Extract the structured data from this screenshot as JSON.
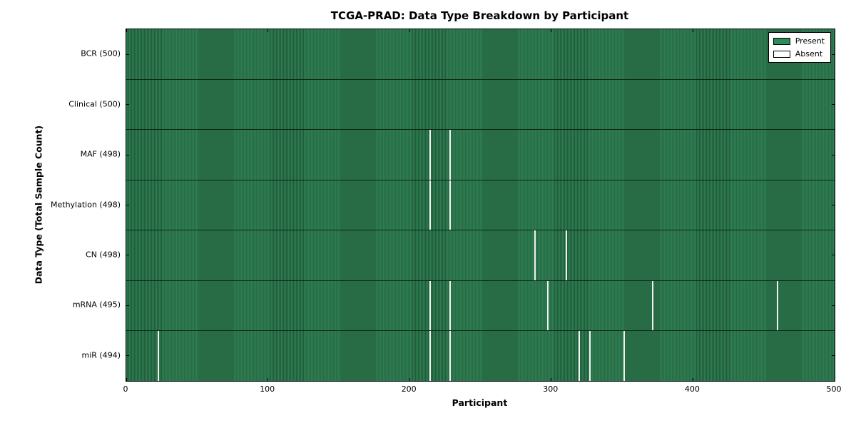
{
  "chart_data": {
    "type": "heatmap",
    "title": "TCGA-PRAD: Data Type Breakdown by Participant",
    "xlabel": "Participant",
    "ylabel": "Data Type (Total Sample Count)",
    "xlim": [
      0,
      500
    ],
    "x_ticks": [
      0,
      100,
      200,
      300,
      400,
      500
    ],
    "n_participants": 500,
    "grid": false,
    "legend_position": "upper right",
    "legend": [
      {
        "label": "Present",
        "color": "#2E8B57"
      },
      {
        "label": "Absent",
        "color": "#FFFFFF"
      }
    ],
    "colors": {
      "present_fill_light": "#2E7D51",
      "present_fill_dark": "#215C3B",
      "absent_fill": "#F2F2F0",
      "axis": "#000000",
      "background": "#FFFFFF"
    },
    "rows": [
      {
        "label": "BCR (500)",
        "data_type": "BCR",
        "total_samples": 500,
        "absent_participants": []
      },
      {
        "label": "Clinical (500)",
        "data_type": "Clinical",
        "total_samples": 500,
        "absent_participants": []
      },
      {
        "label": "MAF (498)",
        "data_type": "MAF",
        "total_samples": 498,
        "absent_participants": [
          214,
          228
        ]
      },
      {
        "label": "Methylation (498)",
        "data_type": "Methylation",
        "total_samples": 498,
        "absent_participants": [
          214,
          228
        ]
      },
      {
        "label": "CN (498)",
        "data_type": "CN",
        "total_samples": 498,
        "absent_participants": [
          288,
          310
        ]
      },
      {
        "label": "mRNA (495)",
        "data_type": "mRNA",
        "total_samples": 495,
        "absent_participants": [
          214,
          228,
          297,
          371,
          459
        ]
      },
      {
        "label": "miR (494)",
        "data_type": "miR",
        "total_samples": 494,
        "absent_participants": [
          22,
          214,
          228,
          319,
          327,
          351
        ]
      }
    ]
  }
}
